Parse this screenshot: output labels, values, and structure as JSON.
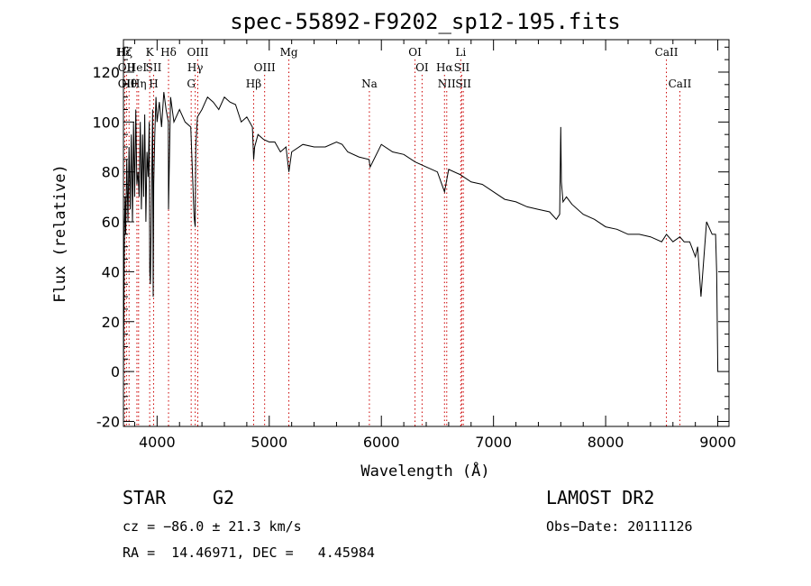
{
  "chart_data": {
    "type": "line",
    "title": "spec-55892-F9202_sp12-195.fits",
    "xlabel": "Wavelength (Å)",
    "ylabel": "Flux (relative)",
    "xlim": [
      3700,
      9100
    ],
    "ylim": [
      -22,
      133
    ],
    "xticks": [
      4000,
      5000,
      6000,
      7000,
      8000,
      9000
    ],
    "yticks": [
      -20,
      0,
      20,
      40,
      60,
      80,
      100,
      120
    ],
    "grid": false,
    "series": [
      {
        "x": [
          3700,
          3705,
          3710,
          3715,
          3720,
          3730,
          3740,
          3750,
          3760,
          3770,
          3780,
          3790,
          3800,
          3810,
          3820,
          3830,
          3840,
          3850,
          3860,
          3870,
          3880,
          3890,
          3900,
          3910,
          3920,
          3930,
          3935,
          3940,
          3950,
          3960,
          3965,
          3970,
          3980,
          3990,
          4000,
          4020,
          4040,
          4060,
          4080,
          4100,
          4102,
          4120,
          4150,
          4200,
          4250,
          4300,
          4330,
          4340,
          4345,
          4360,
          4400,
          4450,
          4500,
          4550,
          4600,
          4650,
          4700,
          4750,
          4800,
          4850,
          4861,
          4870,
          4900,
          4950,
          5000,
          5050,
          5100,
          5150,
          5175,
          5200,
          5300,
          5400,
          5500,
          5600,
          5650,
          5700,
          5800,
          5890,
          5900,
          6000,
          6100,
          6200,
          6300,
          6400,
          6500,
          6563,
          6600,
          6700,
          6800,
          6900,
          7000,
          7100,
          7200,
          7300,
          7400,
          7500,
          7560,
          7590,
          7600,
          7605,
          7620,
          7650,
          7700,
          7800,
          7900,
          8000,
          8100,
          8200,
          8300,
          8400,
          8500,
          8542,
          8600,
          8662,
          8700,
          8750,
          8800,
          8820,
          8850,
          8900,
          8950,
          8980,
          8990,
          9000,
          9005
        ],
        "y": [
          -2,
          30,
          60,
          70,
          55,
          85,
          60,
          90,
          65,
          95,
          60,
          100,
          70,
          105,
          75,
          80,
          70,
          100,
          65,
          95,
          70,
          103,
          60,
          88,
          78,
          100,
          40,
          35,
          70,
          105,
          30,
          75,
          95,
          110,
          100,
          108,
          98,
          112,
          105,
          100,
          65,
          110,
          100,
          105,
          100,
          98,
          62,
          58,
          90,
          102,
          105,
          110,
          108,
          105,
          110,
          108,
          107,
          100,
          102,
          98,
          85,
          90,
          95,
          93,
          92,
          92,
          88,
          90,
          80,
          88,
          91,
          90,
          90,
          92,
          91,
          88,
          86,
          85,
          82,
          91,
          88,
          87,
          84,
          82,
          80,
          72,
          81,
          79,
          76,
          75,
          72,
          69,
          68,
          66,
          65,
          64,
          61,
          63,
          98,
          76,
          68,
          70,
          67,
          63,
          61,
          58,
          57,
          55,
          55,
          54,
          52,
          55,
          52,
          54,
          52,
          52,
          46,
          50,
          30,
          60,
          55,
          55,
          40,
          0,
          0
        ]
      }
    ],
    "line_ids": [
      {
        "label": "Hε",
        "x": 3700,
        "row": 1
      },
      {
        "label": "Hζ",
        "x": 3712,
        "row": 1
      },
      {
        "label": "OII",
        "x": 3727,
        "row": 2
      },
      {
        "label": "OII",
        "x": 3727,
        "row": 3
      },
      {
        "label": "Hθ",
        "x": 3750,
        "row": 3
      },
      {
        "label": "HeI",
        "x": 3820,
        "row": 2
      },
      {
        "label": "Hη",
        "x": 3835,
        "row": 3
      },
      {
        "label": "K",
        "x": 3934,
        "row": 1
      },
      {
        "label": "SII",
        "x": 3969,
        "row": 2
      },
      {
        "label": "H",
        "x": 3969,
        "row": 3
      },
      {
        "label": "Hδ",
        "x": 4102,
        "row": 1
      },
      {
        "label": "OIII",
        "x": 4363,
        "row": 1
      },
      {
        "label": "Hγ",
        "x": 4340,
        "row": 2
      },
      {
        "label": "G",
        "x": 4304,
        "row": 3
      },
      {
        "label": "OIII",
        "x": 4959,
        "row": 2
      },
      {
        "label": "Hβ",
        "x": 4861,
        "row": 3
      },
      {
        "label": "Mg",
        "x": 5175,
        "row": 1
      },
      {
        "label": "Na",
        "x": 5893,
        "row": 3
      },
      {
        "label": "OI",
        "x": 6300,
        "row": 1
      },
      {
        "label": "OI",
        "x": 6363,
        "row": 2
      },
      {
        "label": "Hα",
        "x": 6563,
        "row": 2
      },
      {
        "label": "NII",
        "x": 6583,
        "row": 3
      },
      {
        "label": "Li",
        "x": 6708,
        "row": 1
      },
      {
        "label": "SII",
        "x": 6717,
        "row": 2
      },
      {
        "label": "SII",
        "x": 6731,
        "row": 3
      },
      {
        "label": "CaII",
        "x": 8542,
        "row": 1
      },
      {
        "label": "CaII",
        "x": 8662,
        "row": 3
      }
    ],
    "line_marker_color": "#cc0000"
  },
  "info": {
    "class_label": "STAR",
    "subclass": "G2",
    "survey": "LAMOST DR2",
    "cz": "cz = −86.0 ± 21.3 km/s",
    "obs_date": "Obs−Date: 20111126",
    "coords": "RA =  14.46971, DEC =   4.45984"
  }
}
